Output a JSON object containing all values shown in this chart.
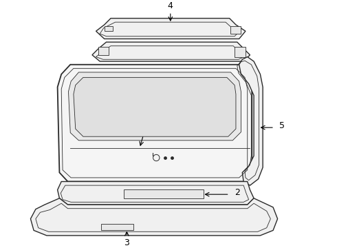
{
  "background_color": "#ffffff",
  "line_color": "#2a2a2a",
  "fig_width": 4.9,
  "fig_height": 3.6,
  "dpi": 100,
  "lw_main": 1.0,
  "lw_inner": 0.6,
  "part_fill": "#f0f0f0",
  "part_fill2": "#e8e8e8"
}
